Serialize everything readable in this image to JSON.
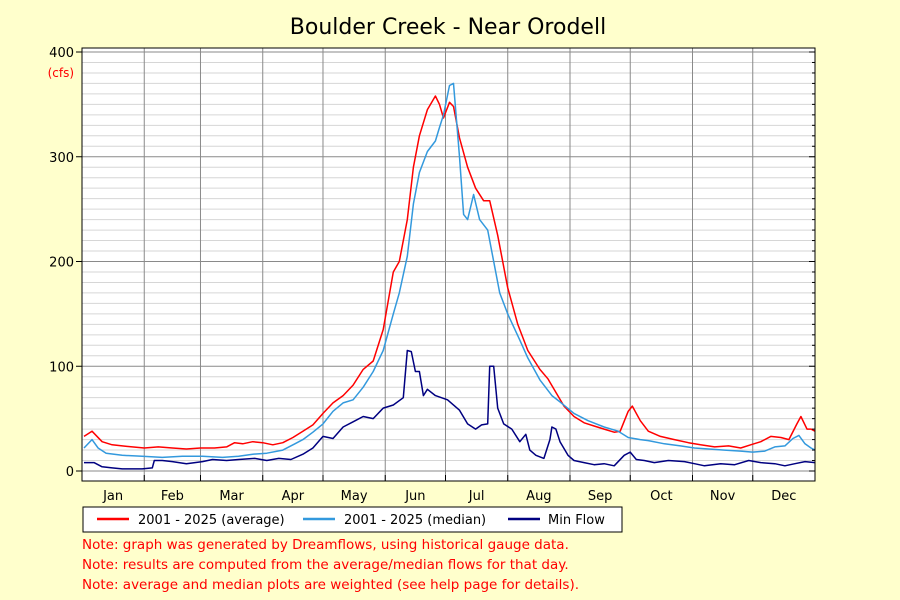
{
  "chart_data": {
    "type": "line",
    "title": "Boulder Creek - Near Orodell",
    "ylabel": "(cfs)",
    "ylim": [
      0,
      400
    ],
    "yticks": [
      0,
      100,
      200,
      300,
      400
    ],
    "xlim": [
      0,
      365
    ],
    "months": [
      "Jan",
      "Feb",
      "Mar",
      "Apr",
      "May",
      "Jun",
      "Jul",
      "Aug",
      "Sep",
      "Oct",
      "Nov",
      "Dec"
    ],
    "grid": true,
    "legend_position": "bottom-left",
    "x_unit": "day of year",
    "series": [
      {
        "name": "2001 - 2025 (average)",
        "color": "#ff0000",
        "points": [
          [
            1,
            33
          ],
          [
            5,
            38
          ],
          [
            10,
            28
          ],
          [
            15,
            25
          ],
          [
            20,
            24
          ],
          [
            25,
            23
          ],
          [
            31,
            22
          ],
          [
            38,
            23
          ],
          [
            45,
            22
          ],
          [
            52,
            21
          ],
          [
            59,
            22
          ],
          [
            66,
            22
          ],
          [
            72,
            23
          ],
          [
            76,
            27
          ],
          [
            80,
            26
          ],
          [
            85,
            28
          ],
          [
            90,
            27
          ],
          [
            95,
            25
          ],
          [
            100,
            27
          ],
          [
            105,
            32
          ],
          [
            110,
            38
          ],
          [
            115,
            44
          ],
          [
            120,
            55
          ],
          [
            125,
            65
          ],
          [
            130,
            72
          ],
          [
            135,
            82
          ],
          [
            140,
            97
          ],
          [
            145,
            105
          ],
          [
            150,
            135
          ],
          [
            155,
            190
          ],
          [
            158,
            200
          ],
          [
            162,
            240
          ],
          [
            165,
            290
          ],
          [
            168,
            320
          ],
          [
            172,
            345
          ],
          [
            176,
            358
          ],
          [
            178,
            350
          ],
          [
            180,
            337
          ],
          [
            183,
            352
          ],
          [
            185,
            348
          ],
          [
            188,
            318
          ],
          [
            192,
            290
          ],
          [
            196,
            270
          ],
          [
            200,
            258
          ],
          [
            203,
            258
          ],
          [
            207,
            225
          ],
          [
            212,
            175
          ],
          [
            217,
            140
          ],
          [
            222,
            115
          ],
          [
            228,
            97
          ],
          [
            232,
            88
          ],
          [
            236,
            75
          ],
          [
            240,
            62
          ],
          [
            245,
            52
          ],
          [
            250,
            46
          ],
          [
            255,
            43
          ],
          [
            260,
            40
          ],
          [
            265,
            37
          ],
          [
            268,
            38
          ],
          [
            272,
            57
          ],
          [
            274,
            62
          ],
          [
            278,
            48
          ],
          [
            282,
            38
          ],
          [
            288,
            33
          ],
          [
            295,
            30
          ],
          [
            302,
            27
          ],
          [
            308,
            25
          ],
          [
            315,
            23
          ],
          [
            322,
            24
          ],
          [
            328,
            22
          ],
          [
            333,
            25
          ],
          [
            338,
            28
          ],
          [
            343,
            33
          ],
          [
            348,
            32
          ],
          [
            352,
            30
          ],
          [
            356,
            45
          ],
          [
            358,
            52
          ],
          [
            361,
            40
          ],
          [
            363,
            40
          ],
          [
            365,
            38
          ]
        ]
      },
      {
        "name": "2001 - 2025 (median)",
        "color": "#3399dd",
        "points": [
          [
            1,
            22
          ],
          [
            5,
            30
          ],
          [
            8,
            22
          ],
          [
            12,
            17
          ],
          [
            20,
            15
          ],
          [
            30,
            14
          ],
          [
            40,
            13
          ],
          [
            50,
            14
          ],
          [
            60,
            14
          ],
          [
            70,
            13
          ],
          [
            78,
            14
          ],
          [
            85,
            16
          ],
          [
            92,
            17
          ],
          [
            100,
            20
          ],
          [
            106,
            26
          ],
          [
            110,
            30
          ],
          [
            115,
            37
          ],
          [
            120,
            45
          ],
          [
            125,
            57
          ],
          [
            130,
            65
          ],
          [
            135,
            68
          ],
          [
            140,
            80
          ],
          [
            145,
            95
          ],
          [
            150,
            115
          ],
          [
            155,
            150
          ],
          [
            158,
            170
          ],
          [
            162,
            205
          ],
          [
            165,
            255
          ],
          [
            168,
            285
          ],
          [
            172,
            305
          ],
          [
            176,
            315
          ],
          [
            178,
            328
          ],
          [
            180,
            340
          ],
          [
            183,
            368
          ],
          [
            185,
            370
          ],
          [
            188,
            300
          ],
          [
            190,
            245
          ],
          [
            192,
            240
          ],
          [
            195,
            264
          ],
          [
            198,
            240
          ],
          [
            202,
            230
          ],
          [
            205,
            200
          ],
          [
            208,
            170
          ],
          [
            212,
            150
          ],
          [
            218,
            125
          ],
          [
            222,
            108
          ],
          [
            228,
            87
          ],
          [
            234,
            72
          ],
          [
            238,
            66
          ],
          [
            245,
            55
          ],
          [
            252,
            48
          ],
          [
            260,
            42
          ],
          [
            267,
            38
          ],
          [
            272,
            32
          ],
          [
            278,
            30
          ],
          [
            282,
            29
          ],
          [
            290,
            26
          ],
          [
            298,
            24
          ],
          [
            305,
            22
          ],
          [
            312,
            21
          ],
          [
            320,
            20
          ],
          [
            328,
            19
          ],
          [
            334,
            18
          ],
          [
            340,
            19
          ],
          [
            345,
            23
          ],
          [
            350,
            24
          ],
          [
            354,
            31
          ],
          [
            357,
            34
          ],
          [
            360,
            26
          ],
          [
            363,
            22
          ],
          [
            365,
            20
          ]
        ]
      },
      {
        "name": "Min Flow",
        "color": "#000080",
        "points": [
          [
            1,
            8
          ],
          [
            6,
            8
          ],
          [
            10,
            4
          ],
          [
            15,
            3
          ],
          [
            20,
            2
          ],
          [
            30,
            2
          ],
          [
            35,
            3
          ],
          [
            36,
            10
          ],
          [
            40,
            10
          ],
          [
            45,
            9
          ],
          [
            52,
            7
          ],
          [
            60,
            9
          ],
          [
            65,
            11
          ],
          [
            72,
            10
          ],
          [
            78,
            11
          ],
          [
            86,
            12
          ],
          [
            92,
            10
          ],
          [
            98,
            12
          ],
          [
            104,
            11
          ],
          [
            110,
            16
          ],
          [
            115,
            22
          ],
          [
            120,
            33
          ],
          [
            125,
            31
          ],
          [
            130,
            42
          ],
          [
            135,
            47
          ],
          [
            140,
            52
          ],
          [
            145,
            50
          ],
          [
            150,
            60
          ],
          [
            155,
            63
          ],
          [
            160,
            70
          ],
          [
            162,
            115
          ],
          [
            164,
            114
          ],
          [
            166,
            95
          ],
          [
            168,
            95
          ],
          [
            170,
            72
          ],
          [
            172,
            78
          ],
          [
            176,
            72
          ],
          [
            182,
            68
          ],
          [
            188,
            58
          ],
          [
            192,
            45
          ],
          [
            196,
            40
          ],
          [
            199,
            44
          ],
          [
            202,
            45
          ],
          [
            203,
            100
          ],
          [
            205,
            100
          ],
          [
            207,
            60
          ],
          [
            210,
            45
          ],
          [
            214,
            40
          ],
          [
            218,
            28
          ],
          [
            221,
            35
          ],
          [
            223,
            20
          ],
          [
            226,
            15
          ],
          [
            230,
            12
          ],
          [
            233,
            30
          ],
          [
            234,
            42
          ],
          [
            236,
            40
          ],
          [
            238,
            28
          ],
          [
            242,
            15
          ],
          [
            245,
            10
          ],
          [
            250,
            8
          ],
          [
            255,
            6
          ],
          [
            260,
            7
          ],
          [
            265,
            5
          ],
          [
            270,
            15
          ],
          [
            273,
            18
          ],
          [
            276,
            11
          ],
          [
            280,
            10
          ],
          [
            285,
            8
          ],
          [
            292,
            10
          ],
          [
            300,
            9
          ],
          [
            305,
            7
          ],
          [
            310,
            5
          ],
          [
            318,
            7
          ],
          [
            325,
            6
          ],
          [
            332,
            10
          ],
          [
            338,
            8
          ],
          [
            345,
            7
          ],
          [
            350,
            5
          ],
          [
            355,
            7
          ],
          [
            360,
            9
          ],
          [
            365,
            8
          ]
        ]
      }
    ]
  },
  "notes": [
    "Note: graph was generated by Dreamflows, using historical gauge data.",
    "Note: results are computed from the average/median flows for that day.",
    "Note: average and median plots are weighted (see help page for details)."
  ]
}
